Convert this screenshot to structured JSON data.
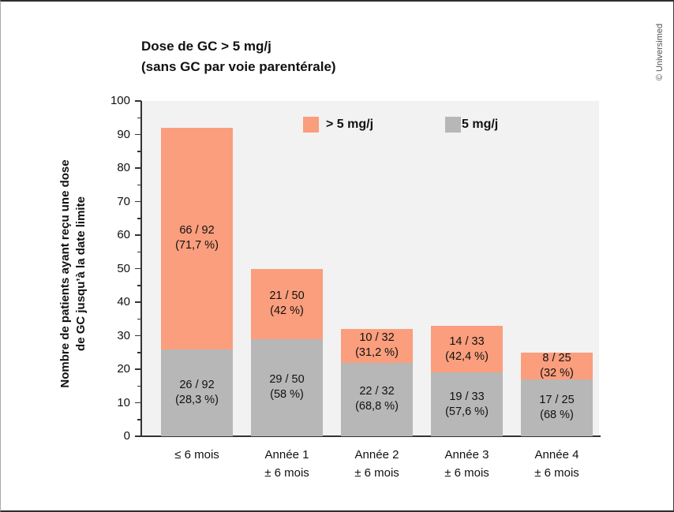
{
  "watermark": "© Universimed",
  "title": {
    "line1": "Dose de GC > 5 mg/j",
    "line2": "(sans GC par voie parentérale)"
  },
  "legend": {
    "items": [
      {
        "label": "> 5 mg/j",
        "color": "#FA9E7D"
      },
      {
        "label": "5 mg/j",
        "color": "#B7B7B7"
      }
    ]
  },
  "y_axis": {
    "title_line1": "Nombre de patients ayant reçu une dose",
    "title_line2": "de GC jusqu’à la date limite",
    "min": 0,
    "max": 100,
    "major_step": 10,
    "minor_step": 5
  },
  "chart_data": {
    "type": "bar",
    "stacked": true,
    "title": "Dose de GC > 5 mg/j (sans GC par voie parentérale)",
    "ylabel": "Nombre de patients ayant reçu une dose de GC jusqu’à la date limite",
    "ylim": [
      0,
      100
    ],
    "grid": false,
    "legend_position": "top-inside",
    "categories": [
      "≤ 6 mois",
      "Année 1 ± 6 mois",
      "Année 2 ± 6 mois",
      "Année 3 ± 6 mois",
      "Année 4 ± 6 mois"
    ],
    "category_lines": [
      [
        "≤ 6 mois"
      ],
      [
        "Année 1",
        "± 6 mois"
      ],
      [
        "Année 2",
        "± 6 mois"
      ],
      [
        "Année 3",
        "± 6 mois"
      ],
      [
        "Année 4",
        "± 6 mois"
      ]
    ],
    "series": [
      {
        "name": "5 mg/j",
        "color": "#B7B7B7",
        "values": [
          26,
          29,
          22,
          19,
          17
        ],
        "labels": [
          [
            "26 / 92",
            "(28,3 %)"
          ],
          [
            "29 / 50",
            "(58 %)"
          ],
          [
            "22 / 32",
            "(68,8 %)"
          ],
          [
            "19 / 33",
            "(57,6 %)"
          ],
          [
            "17 / 25",
            "(68 %)"
          ]
        ]
      },
      {
        "name": "> 5 mg/j",
        "color": "#FA9E7D",
        "values": [
          66,
          21,
          10,
          14,
          8
        ],
        "labels": [
          [
            "66 / 92",
            "(71,7 %)"
          ],
          [
            "21 / 50",
            "(42 %)"
          ],
          [
            "10 / 32",
            "(31,2 %)"
          ],
          [
            "14 / 33",
            "(42,4 %)"
          ],
          [
            "8 / 25",
            "(32 %)"
          ]
        ]
      }
    ]
  }
}
